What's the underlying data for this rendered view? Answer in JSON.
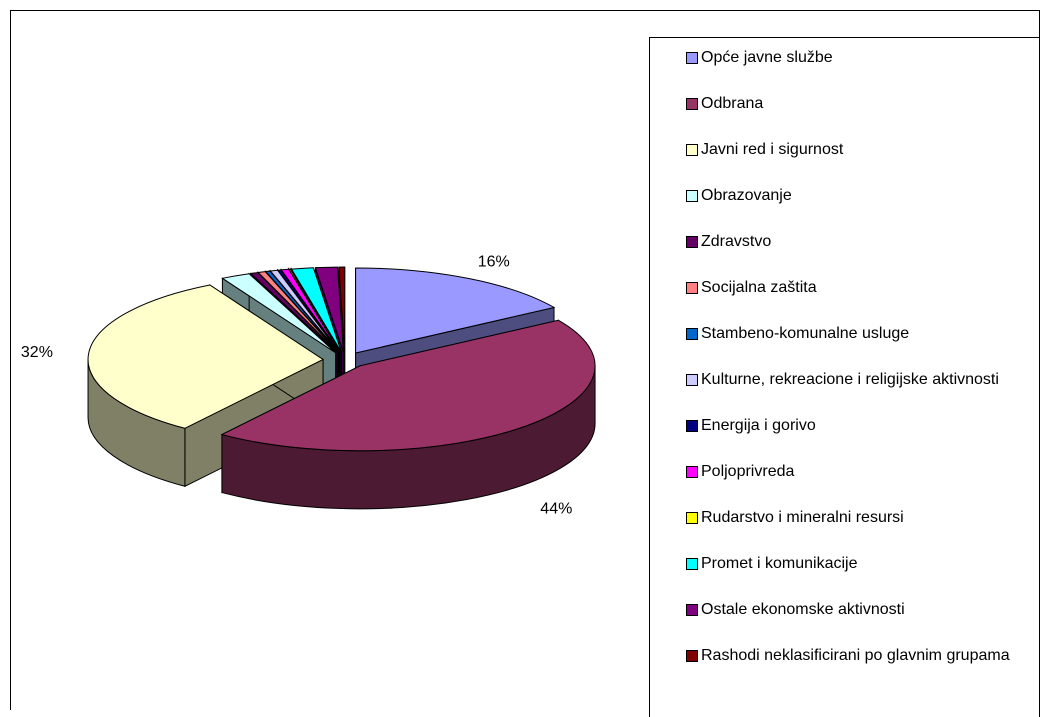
{
  "chart_data": {
    "type": "pie",
    "legend": "right",
    "categories": [
      "Opće javne službe",
      "Odbrana",
      "Javni red i sigurnost",
      "Obrazovanje",
      "Zdravstvo",
      "Socijalna zaštita",
      "Stambeno-komunalne usluge",
      "Kulturne, rekreacione i religijske aktivnosti",
      "Energija i gorivo",
      "Poljoprivreda",
      "Rudarstvo i mineralni resursi",
      "Promet i komunikacije",
      "Ostale ekonomske aktivnosti",
      "Rashodi neklasificirani po glavnim grupama"
    ],
    "values": [
      16,
      44,
      32,
      2,
      0.5,
      0.5,
      0.3,
      0.5,
      0.2,
      0.5,
      0.1,
      1.5,
      1.5,
      0.4
    ],
    "value_labels": [
      "16%",
      "44%",
      "32%",
      null,
      null,
      null,
      null,
      null,
      null,
      null,
      null,
      null,
      null,
      null
    ],
    "colors": [
      "#9999ff",
      "#993366",
      "#ffffcc",
      "#ccffff",
      "#660066",
      "#ff8080",
      "#0066cc",
      "#ccccff",
      "#000080",
      "#ff00ff",
      "#ffff00",
      "#00ffff",
      "#800080",
      "#800000"
    ]
  }
}
